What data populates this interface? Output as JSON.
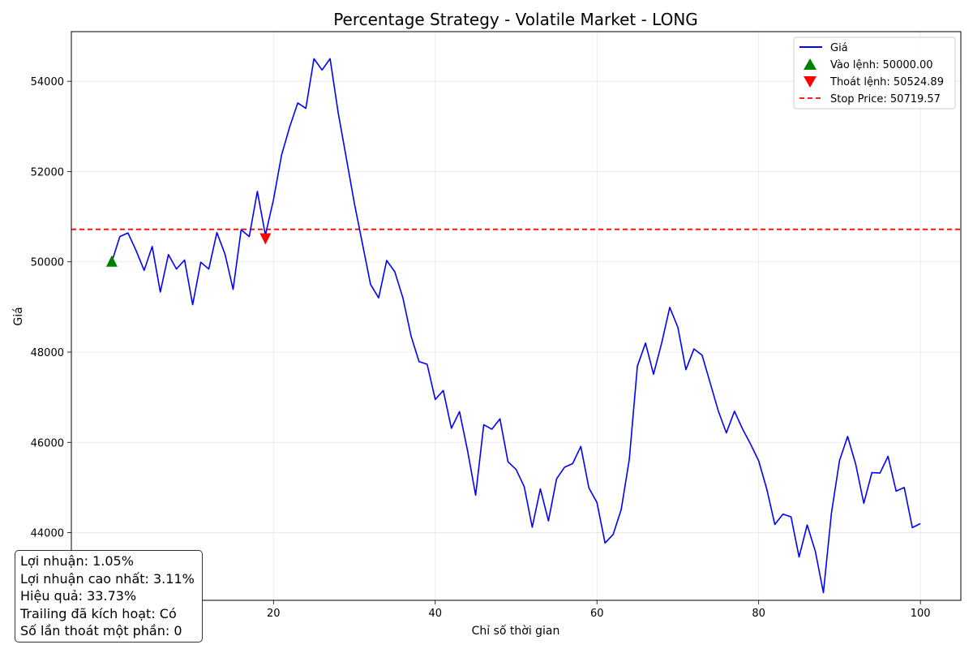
{
  "chart_data": {
    "type": "line",
    "title": "Percentage Strategy - Volatile Market - LONG",
    "xlabel": "Chỉ số thời gian",
    "ylabel": "Giá",
    "xlim": [
      -5,
      105
    ],
    "ylim": [
      42500,
      55100
    ],
    "x_ticks": [
      20,
      40,
      60,
      80,
      100
    ],
    "y_ticks": [
      44000,
      46000,
      48000,
      50000,
      52000,
      54000
    ],
    "grid": true,
    "legend_position": "top-right",
    "series": [
      {
        "name": "Giá",
        "color": "#0000ff",
        "x": [
          0,
          1,
          2,
          3,
          4,
          5,
          6,
          7,
          8,
          9,
          10,
          11,
          12,
          13,
          14,
          15,
          16,
          17,
          18,
          19,
          20,
          21,
          22,
          23,
          24,
          25,
          26,
          27,
          28,
          29,
          30,
          31,
          32,
          33,
          34,
          35,
          36,
          37,
          38,
          39,
          40,
          41,
          42,
          43,
          44,
          45,
          46,
          47,
          48,
          49,
          50,
          51,
          52,
          53,
          54,
          55,
          56,
          57,
          58,
          59,
          60,
          61,
          62,
          63,
          64,
          65,
          66,
          67,
          68,
          69,
          70,
          71,
          72,
          73,
          74,
          75,
          76,
          77,
          78,
          79,
          80,
          81,
          82,
          83,
          84,
          85,
          86,
          87,
          88,
          89,
          90,
          91,
          92,
          93,
          94,
          95,
          96,
          97,
          98,
          99,
          100
        ],
        "y": [
          50000,
          50560,
          50640,
          50250,
          49810,
          50340,
          49330,
          50160,
          49840,
          50040,
          49050,
          49990,
          49840,
          50650,
          50170,
          49390,
          50710,
          50560,
          51560,
          50590,
          51380,
          52370,
          52990,
          53520,
          53400,
          54500,
          54250,
          54500,
          53300,
          52300,
          51300,
          50400,
          49500,
          49200,
          50030,
          49780,
          49200,
          48360,
          47790,
          47730,
          46950,
          47150,
          46310,
          46680,
          45810,
          44830,
          46390,
          46290,
          46520,
          45570,
          45400,
          45020,
          44120,
          44970,
          44260,
          45190,
          45450,
          45530,
          45910,
          44990,
          44670,
          43770,
          43960,
          44510,
          45620,
          47690,
          48200,
          47510,
          48200,
          48990,
          48550,
          47610,
          48070,
          47930,
          47320,
          46700,
          46210,
          46690,
          46300,
          45960,
          45590,
          44960,
          44180,
          44410,
          44350,
          43460,
          44170,
          43590,
          42670,
          44430,
          45600,
          46130,
          45510,
          44650,
          45330,
          45320,
          45690,
          44920,
          45000,
          44110,
          44200
        ]
      }
    ],
    "entry": {
      "label": "Vào lệnh: 50000.00",
      "x": 0,
      "y": 50000,
      "color": "#008000"
    },
    "exit": {
      "label": "Thoát lệnh: 50524.89",
      "x": 19,
      "y": 50524.89,
      "color": "#ff0000"
    },
    "stop": {
      "label": "Stop Price: 50719.57",
      "y": 50719.57,
      "color": "#ff0000"
    }
  },
  "stats": {
    "profit": "Lợi nhuận: 1.05%",
    "max_profit": "Lợi nhuận cao nhất: 3.11%",
    "efficiency": "Hiệu quả: 33.73%",
    "trailing": "Trailing đã kích hoạt: Có",
    "partial_exits": "Số lần thoát một phần: 0"
  }
}
